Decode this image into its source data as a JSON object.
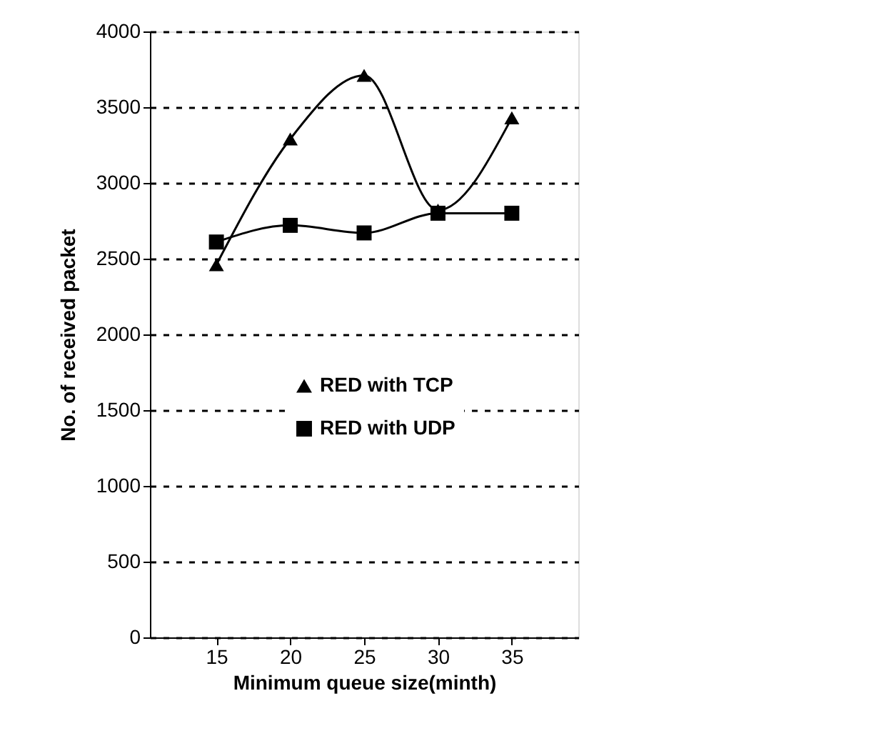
{
  "chart_data": {
    "type": "line",
    "xlabel": "Minimum queue size(minth)",
    "ylabel": "No. of received packet",
    "categories": [
      "15",
      "20",
      "25",
      "30",
      "35"
    ],
    "series": [
      {
        "name": "RED with TCP",
        "color": "#000000",
        "marker": "triangle",
        "values": [
          2460,
          3290,
          3710,
          2820,
          3430
        ]
      },
      {
        "name": "RED with UDP",
        "color": "#000000",
        "marker": "square",
        "values": [
          2610,
          2720,
          2670,
          2800,
          2800
        ]
      }
    ],
    "ylim": [
      0,
      4000
    ],
    "yticks": [
      0,
      500,
      1000,
      1500,
      2000,
      2500,
      3000,
      3500,
      4000
    ],
    "grid": "y",
    "legend": "left",
    "line_style": "solid"
  }
}
